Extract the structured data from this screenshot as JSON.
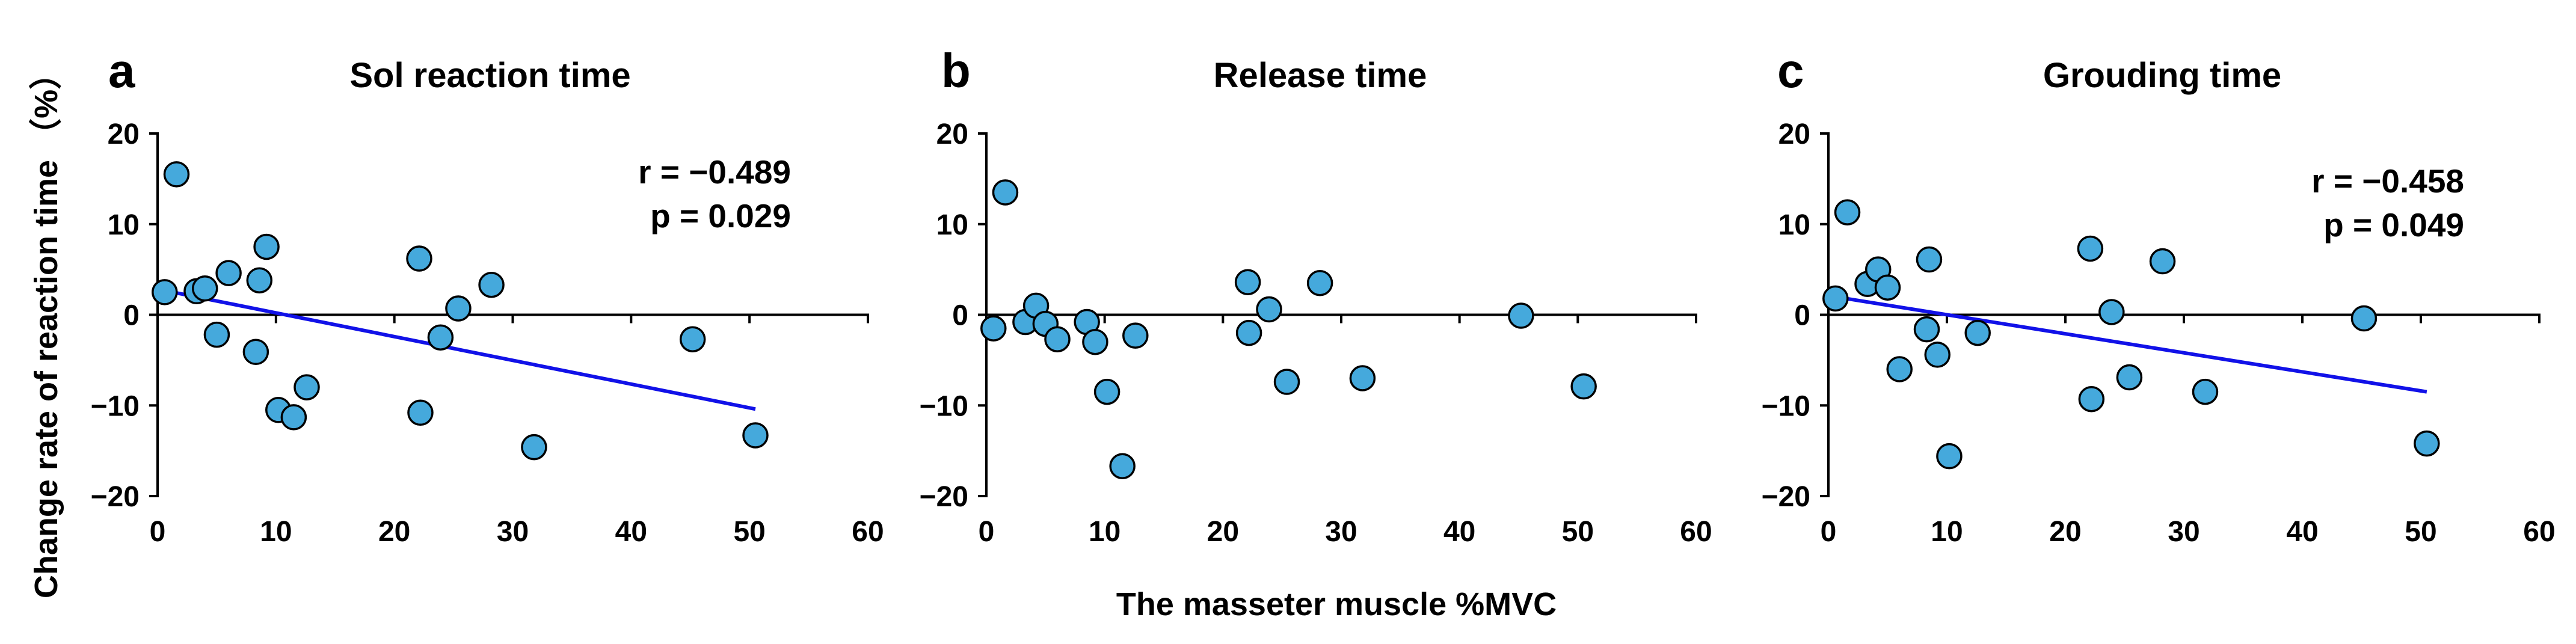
{
  "figure": {
    "ylabel": "Change rate of reaction time （%）",
    "xlabel": "The masseter muscle %MVC"
  },
  "colors": {
    "point_fill": "#45A9DC",
    "point_stroke": "#000000",
    "trend": "#1111E8",
    "axis": "#000000"
  },
  "chart_data": [
    {
      "type": "scatter",
      "letter": "a",
      "title": "Sol reaction time",
      "xlim": [
        0,
        60
      ],
      "ylim": [
        -20,
        20
      ],
      "xticks": [
        0,
        10,
        20,
        30,
        40,
        50,
        60
      ],
      "yticks": [
        20,
        10,
        0,
        -10,
        -20
      ],
      "stats": [
        "r = −0.489",
        "p = 0.029"
      ],
      "trendline": {
        "x": [
          0.5,
          50.5
        ],
        "y": [
          2.7,
          -10.4
        ]
      },
      "points": [
        {
          "x": 0.6,
          "y": 2.5
        },
        {
          "x": 1.6,
          "y": 15.5
        },
        {
          "x": 3.3,
          "y": 2.6
        },
        {
          "x": 4.0,
          "y": 2.9
        },
        {
          "x": 5.0,
          "y": -2.2
        },
        {
          "x": 6.0,
          "y": 4.6
        },
        {
          "x": 8.3,
          "y": -4.1
        },
        {
          "x": 8.6,
          "y": 3.8
        },
        {
          "x": 9.2,
          "y": 7.5
        },
        {
          "x": 10.2,
          "y": -10.5
        },
        {
          "x": 11.5,
          "y": -11.3
        },
        {
          "x": 12.6,
          "y": -8.0
        },
        {
          "x": 22.1,
          "y": 6.2
        },
        {
          "x": 22.2,
          "y": -10.8
        },
        {
          "x": 23.9,
          "y": -2.5
        },
        {
          "x": 25.4,
          "y": 0.7
        },
        {
          "x": 28.2,
          "y": 3.3
        },
        {
          "x": 31.8,
          "y": -14.6
        },
        {
          "x": 45.2,
          "y": -2.7
        },
        {
          "x": 50.5,
          "y": -13.3
        }
      ]
    },
    {
      "type": "scatter",
      "letter": "b",
      "title": "Release time",
      "xlim": [
        0,
        60
      ],
      "ylim": [
        -20,
        20
      ],
      "xticks": [
        0,
        10,
        20,
        30,
        40,
        50,
        60
      ],
      "yticks": [
        20,
        10,
        0,
        -10,
        -20
      ],
      "stats": [],
      "trendline": null,
      "points": [
        {
          "x": 0.6,
          "y": -1.5
        },
        {
          "x": 1.6,
          "y": 13.5
        },
        {
          "x": 3.3,
          "y": -0.8
        },
        {
          "x": 4.2,
          "y": 1.0
        },
        {
          "x": 5.0,
          "y": -1.0
        },
        {
          "x": 6.0,
          "y": -2.7
        },
        {
          "x": 8.5,
          "y": -0.8
        },
        {
          "x": 9.2,
          "y": -3.0
        },
        {
          "x": 10.2,
          "y": -8.5
        },
        {
          "x": 11.5,
          "y": -16.7
        },
        {
          "x": 12.6,
          "y": -2.3
        },
        {
          "x": 22.1,
          "y": 3.6
        },
        {
          "x": 22.2,
          "y": -2.0
        },
        {
          "x": 23.9,
          "y": 0.6
        },
        {
          "x": 25.4,
          "y": -7.4
        },
        {
          "x": 28.2,
          "y": 3.5
        },
        {
          "x": 31.8,
          "y": -7.0
        },
        {
          "x": 45.2,
          "y": -0.1
        },
        {
          "x": 50.5,
          "y": -7.9
        }
      ]
    },
    {
      "type": "scatter",
      "letter": "c",
      "title": "Grouding time",
      "xlim": [
        0,
        60
      ],
      "ylim": [
        -20,
        20
      ],
      "xticks": [
        0,
        10,
        20,
        30,
        40,
        50,
        60
      ],
      "yticks": [
        20,
        10,
        0,
        -10,
        -20
      ],
      "stats": [
        "r = −0.458",
        "p = 0.049"
      ],
      "trendline": {
        "x": [
          0.5,
          50.5
        ],
        "y": [
          2.0,
          -8.5
        ]
      },
      "points": [
        {
          "x": 0.6,
          "y": 1.8
        },
        {
          "x": 1.6,
          "y": 11.3
        },
        {
          "x": 3.3,
          "y": 3.4
        },
        {
          "x": 4.2,
          "y": 5.0
        },
        {
          "x": 5.0,
          "y": 3.0
        },
        {
          "x": 6.0,
          "y": -6.0
        },
        {
          "x": 8.3,
          "y": -1.6
        },
        {
          "x": 8.5,
          "y": 6.1
        },
        {
          "x": 9.2,
          "y": -4.4
        },
        {
          "x": 10.2,
          "y": -15.6
        },
        {
          "x": 12.6,
          "y": -2.0
        },
        {
          "x": 22.1,
          "y": 7.3
        },
        {
          "x": 22.2,
          "y": -9.3
        },
        {
          "x": 23.9,
          "y": 0.3
        },
        {
          "x": 25.4,
          "y": -6.9
        },
        {
          "x": 28.2,
          "y": 5.9
        },
        {
          "x": 31.8,
          "y": -8.5
        },
        {
          "x": 45.2,
          "y": -0.4
        },
        {
          "x": 50.5,
          "y": -14.2
        }
      ]
    }
  ]
}
